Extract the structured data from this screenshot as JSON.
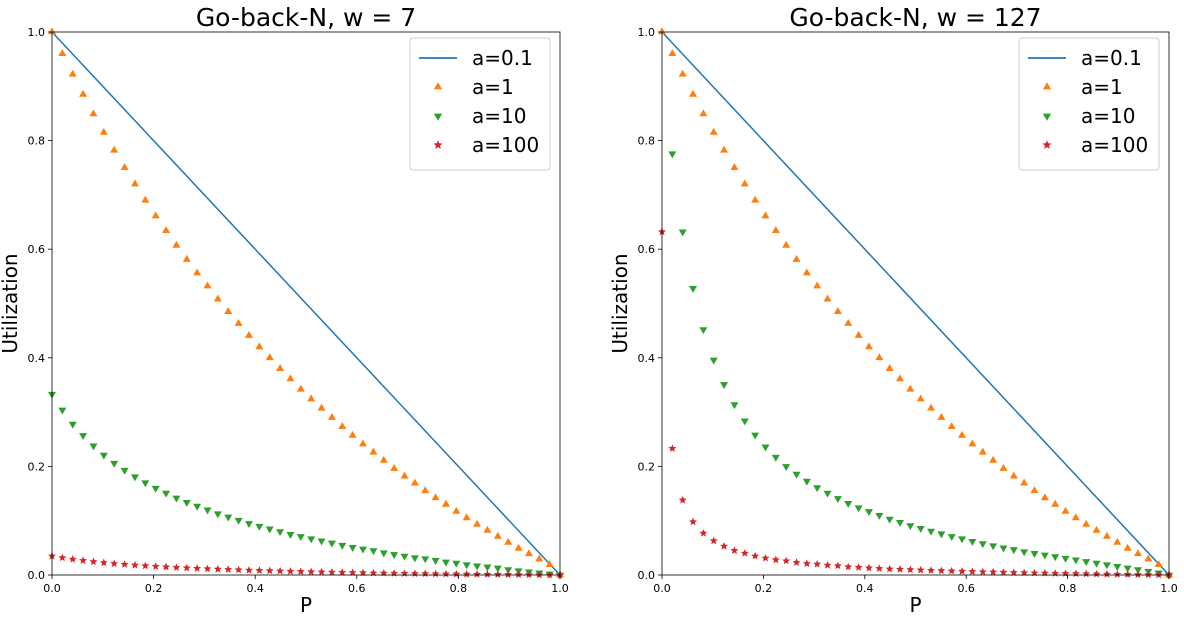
{
  "chart_data": [
    {
      "type": "line",
      "title": "Go-back-N, w = 7",
      "xlabel": "P",
      "ylabel": "Utilization",
      "xlim": [
        0,
        1
      ],
      "ylim": [
        0,
        1
      ],
      "xticks": [
        "0.0",
        "0.2",
        "0.4",
        "0.6",
        "0.8",
        "1.0"
      ],
      "yticks": [
        "0.0",
        "0.2",
        "0.4",
        "0.6",
        "0.8",
        "1.0"
      ],
      "legend_position": "top-right",
      "grid": false,
      "window": 7,
      "series": [
        {
          "name": "a=0.1",
          "style": "line",
          "marker": "none",
          "color": "#1f77b4",
          "x": [
            0,
            1
          ],
          "y": [
            1.0,
            0.0
          ]
        },
        {
          "name": "a=1",
          "style": "scatter",
          "marker": "triangle-up",
          "color": "#ff7f0e",
          "x": [
            0,
            0.0204,
            0.0408,
            0.0612,
            0.0816,
            0.102,
            0.1224,
            0.1429,
            0.1633,
            0.1837,
            0.2041,
            0.2245,
            0.2449,
            0.2653,
            0.2857,
            0.3061,
            0.3265,
            0.3469,
            0.3673,
            0.3878,
            0.4082,
            0.4286,
            0.449,
            0.4694,
            0.4898,
            0.5102,
            0.5306,
            0.551,
            0.5714,
            0.5918,
            0.6122,
            0.6327,
            0.6531,
            0.6735,
            0.6939,
            0.7143,
            0.7347,
            0.7551,
            0.7755,
            0.7959,
            0.8163,
            0.8367,
            0.8571,
            0.8776,
            0.898,
            0.9184,
            0.9388,
            0.9592,
            0.9796,
            1.0
          ],
          "y": [
            1.0,
            0.96,
            0.922,
            0.885,
            0.849,
            0.815,
            0.782,
            0.75,
            0.72,
            0.69,
            0.661,
            0.634,
            0.607,
            0.581,
            0.556,
            0.532,
            0.508,
            0.485,
            0.463,
            0.441,
            0.42,
            0.4,
            0.38,
            0.361,
            0.342,
            0.324,
            0.307,
            0.29,
            0.273,
            0.257,
            0.241,
            0.226,
            0.211,
            0.196,
            0.182,
            0.169,
            0.155,
            0.142,
            0.13,
            0.117,
            0.105,
            0.093,
            0.082,
            0.071,
            0.06,
            0.049,
            0.039,
            0.029,
            0.019,
            0.0
          ]
        },
        {
          "name": "a=10",
          "style": "scatter",
          "marker": "triangle-down",
          "color": "#2ca02c",
          "x": [
            0,
            0.0204,
            0.0408,
            0.0612,
            0.0816,
            0.102,
            0.1224,
            0.1429,
            0.1633,
            0.1837,
            0.2041,
            0.2245,
            0.2449,
            0.2653,
            0.2857,
            0.3061,
            0.3265,
            0.3469,
            0.3673,
            0.3878,
            0.4082,
            0.4286,
            0.449,
            0.4694,
            0.4898,
            0.5102,
            0.5306,
            0.551,
            0.5714,
            0.5918,
            0.6122,
            0.6327,
            0.6531,
            0.6735,
            0.6939,
            0.7143,
            0.7347,
            0.7551,
            0.7755,
            0.7959,
            0.8163,
            0.8367,
            0.8571,
            0.8776,
            0.898,
            0.9184,
            0.9388,
            0.9592,
            0.9796,
            1.0
          ],
          "y": [
            0.333,
            0.304,
            0.278,
            0.257,
            0.238,
            0.221,
            0.206,
            0.193,
            0.181,
            0.17,
            0.16,
            0.151,
            0.142,
            0.134,
            0.127,
            0.12,
            0.113,
            0.107,
            0.101,
            0.095,
            0.09,
            0.085,
            0.08,
            0.075,
            0.071,
            0.067,
            0.063,
            0.059,
            0.055,
            0.051,
            0.048,
            0.045,
            0.041,
            0.038,
            0.035,
            0.032,
            0.03,
            0.027,
            0.024,
            0.022,
            0.019,
            0.017,
            0.015,
            0.013,
            0.01,
            0.008,
            0.006,
            0.004,
            0.002,
            0.0
          ]
        },
        {
          "name": "a=100",
          "style": "scatter",
          "marker": "star",
          "color": "#d62728",
          "x": [
            0,
            0.0204,
            0.0408,
            0.0612,
            0.0816,
            0.102,
            0.1224,
            0.1429,
            0.1633,
            0.1837,
            0.2041,
            0.2245,
            0.2449,
            0.2653,
            0.2857,
            0.3061,
            0.3265,
            0.3469,
            0.3673,
            0.3878,
            0.4082,
            0.4286,
            0.449,
            0.4694,
            0.4898,
            0.5102,
            0.5306,
            0.551,
            0.5714,
            0.5918,
            0.6122,
            0.6327,
            0.6531,
            0.6735,
            0.6939,
            0.7143,
            0.7347,
            0.7551,
            0.7755,
            0.7959,
            0.8163,
            0.8367,
            0.8571,
            0.8776,
            0.898,
            0.9184,
            0.9388,
            0.9592,
            0.9796,
            1.0
          ],
          "y": [
            0.0348,
            0.0317,
            0.029,
            0.0266,
            0.0245,
            0.0226,
            0.021,
            0.0195,
            0.0181,
            0.0169,
            0.0158,
            0.0148,
            0.0138,
            0.013,
            0.0122,
            0.0114,
            0.0107,
            0.0101,
            0.0094,
            0.0088,
            0.0083,
            0.0078,
            0.0073,
            0.0068,
            0.0063,
            0.0059,
            0.0055,
            0.0051,
            0.0047,
            0.0044,
            0.004,
            0.0037,
            0.0034,
            0.0031,
            0.0029,
            0.0026,
            0.0024,
            0.0021,
            0.0019,
            0.0017,
            0.0015,
            0.0013,
            0.0011,
            0.001,
            0.0008,
            0.0006,
            0.0005,
            0.0003,
            0.0002,
            0.0
          ]
        }
      ]
    },
    {
      "type": "line",
      "title": "Go-back-N, w = 127",
      "xlabel": "P",
      "ylabel": "Utilization",
      "xlim": [
        0,
        1
      ],
      "ylim": [
        0,
        1
      ],
      "xticks": [
        "0.0",
        "0.2",
        "0.4",
        "0.6",
        "0.8",
        "1.0"
      ],
      "yticks": [
        "0.0",
        "0.2",
        "0.4",
        "0.6",
        "0.8",
        "1.0"
      ],
      "legend_position": "top-right",
      "grid": false,
      "window": 127,
      "series": [
        {
          "name": "a=0.1",
          "style": "line",
          "marker": "none",
          "color": "#1f77b4",
          "x": [
            0,
            1
          ],
          "y": [
            1.0,
            0.0
          ]
        },
        {
          "name": "a=1",
          "style": "scatter",
          "marker": "triangle-up",
          "color": "#ff7f0e",
          "x": [
            0,
            0.0204,
            0.0408,
            0.0612,
            0.0816,
            0.102,
            0.1224,
            0.1429,
            0.1633,
            0.1837,
            0.2041,
            0.2245,
            0.2449,
            0.2653,
            0.2857,
            0.3061,
            0.3265,
            0.3469,
            0.3673,
            0.3878,
            0.4082,
            0.4286,
            0.449,
            0.4694,
            0.4898,
            0.5102,
            0.5306,
            0.551,
            0.5714,
            0.5918,
            0.6122,
            0.6327,
            0.6531,
            0.6735,
            0.6939,
            0.7143,
            0.7347,
            0.7551,
            0.7755,
            0.7959,
            0.8163,
            0.8367,
            0.8571,
            0.8776,
            0.898,
            0.9184,
            0.9388,
            0.9592,
            0.9796,
            1.0
          ],
          "y": [
            1.0,
            0.96,
            0.922,
            0.885,
            0.849,
            0.815,
            0.782,
            0.75,
            0.72,
            0.69,
            0.661,
            0.634,
            0.607,
            0.581,
            0.556,
            0.532,
            0.508,
            0.485,
            0.463,
            0.441,
            0.42,
            0.4,
            0.38,
            0.361,
            0.342,
            0.324,
            0.307,
            0.29,
            0.273,
            0.257,
            0.241,
            0.226,
            0.211,
            0.196,
            0.182,
            0.169,
            0.155,
            0.142,
            0.13,
            0.117,
            0.105,
            0.093,
            0.082,
            0.071,
            0.06,
            0.049,
            0.039,
            0.029,
            0.019,
            0.0
          ]
        },
        {
          "name": "a=10",
          "style": "scatter",
          "marker": "triangle-down",
          "color": "#2ca02c",
          "x": [
            0.0204,
            0.0408,
            0.0612,
            0.0816,
            0.102,
            0.1224,
            0.1429,
            0.1633,
            0.1837,
            0.2041,
            0.2245,
            0.2449,
            0.2653,
            0.2857,
            0.3061,
            0.3265,
            0.3469,
            0.3673,
            0.3878,
            0.4082,
            0.4286,
            0.449,
            0.4694,
            0.4898,
            0.5102,
            0.5306,
            0.551,
            0.5714,
            0.5918,
            0.6122,
            0.6327,
            0.6531,
            0.6735,
            0.6939,
            0.7143,
            0.7347,
            0.7551,
            0.7755,
            0.7959,
            0.8163,
            0.8367,
            0.8571,
            0.8776,
            0.898,
            0.9184,
            0.9388,
            0.9592,
            0.9796,
            1.0
          ],
          "y": [
            0.776,
            0.632,
            0.528,
            0.452,
            0.396,
            0.351,
            0.314,
            0.284,
            0.258,
            0.236,
            0.217,
            0.2,
            0.186,
            0.173,
            0.161,
            0.151,
            0.141,
            0.132,
            0.124,
            0.117,
            0.11,
            0.103,
            0.097,
            0.091,
            0.086,
            0.081,
            0.076,
            0.071,
            0.067,
            0.062,
            0.058,
            0.054,
            0.05,
            0.047,
            0.043,
            0.04,
            0.037,
            0.034,
            0.031,
            0.028,
            0.025,
            0.022,
            0.019,
            0.016,
            0.013,
            0.01,
            0.007,
            0.004,
            0.0
          ]
        },
        {
          "name": "a=100",
          "style": "scatter",
          "marker": "star",
          "color": "#d62728",
          "x": [
            0,
            0.0204,
            0.0408,
            0.0612,
            0.0816,
            0.102,
            0.1224,
            0.1429,
            0.1633,
            0.1837,
            0.2041,
            0.2245,
            0.2449,
            0.2653,
            0.2857,
            0.3061,
            0.3265,
            0.3469,
            0.3673,
            0.3878,
            0.4082,
            0.4286,
            0.449,
            0.4694,
            0.4898,
            0.5102,
            0.5306,
            0.551,
            0.5714,
            0.5918,
            0.6122,
            0.6327,
            0.6531,
            0.6735,
            0.6939,
            0.7143,
            0.7347,
            0.7551,
            0.7755,
            0.7959,
            0.8163,
            0.8367,
            0.8571,
            0.8776,
            0.898,
            0.9184,
            0.9388,
            0.9592,
            0.9796,
            1.0
          ],
          "y": [
            0.632,
            0.233,
            0.138,
            0.098,
            0.077,
            0.063,
            0.053,
            0.045,
            0.04,
            0.035,
            0.031,
            0.028,
            0.026,
            0.023,
            0.021,
            0.02,
            0.018,
            0.017,
            0.015,
            0.014,
            0.013,
            0.012,
            0.011,
            0.0105,
            0.0098,
            0.0091,
            0.0085,
            0.0079,
            0.0073,
            0.0068,
            0.0063,
            0.0058,
            0.0054,
            0.0049,
            0.0045,
            0.0041,
            0.0037,
            0.0034,
            0.003,
            0.0027,
            0.0024,
            0.0021,
            0.0018,
            0.0015,
            0.0012,
            0.001,
            0.0007,
            0.0005,
            0.0002,
            0.0
          ]
        }
      ]
    }
  ]
}
